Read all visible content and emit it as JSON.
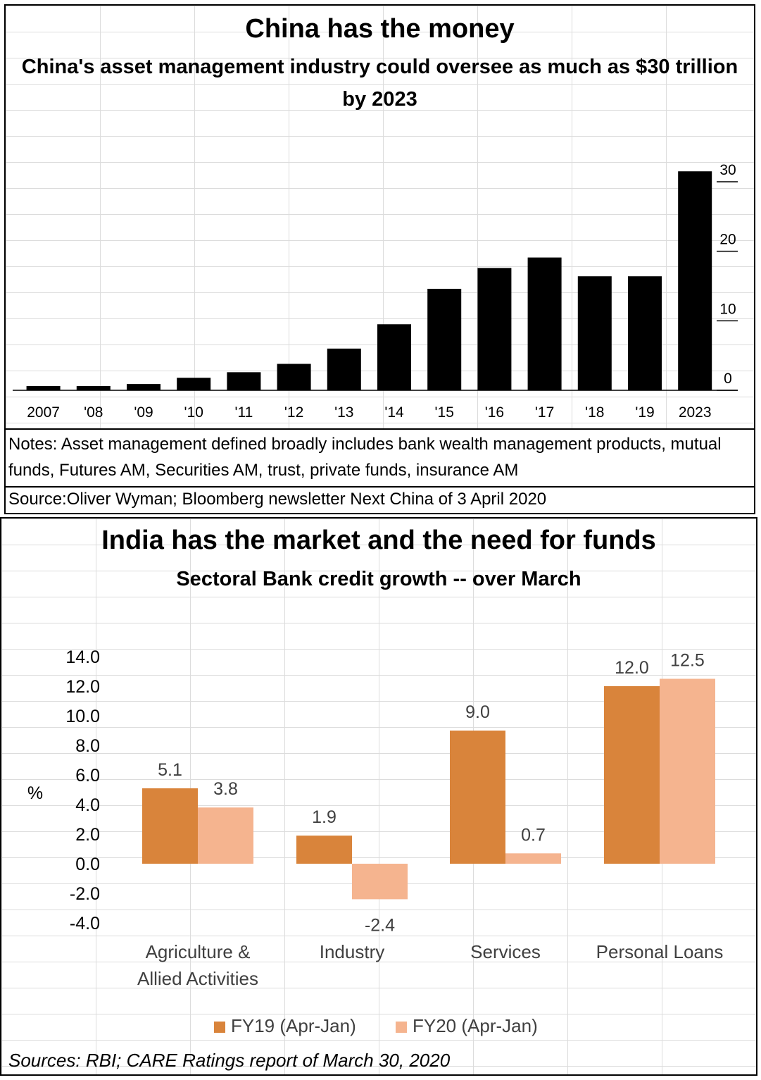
{
  "china": {
    "title": "China has the money",
    "subtitle": "China's asset management industry could oversee as much as $30 trillion by 2023",
    "notes": "Notes: Asset management defined broadly includes bank wealth management products, mutual funds, Futures AM, Securities AM, trust, private funds, insurance AM",
    "source": "Source:Oliver Wyman;  Bloomberg newsletter Next China of 3 April 2020"
  },
  "india": {
    "title": "India has the market and the need for funds",
    "subtitle": "Sectoral Bank credit growth  -- over March",
    "y_unit": "%",
    "sources": "Sources: RBI; CARE Ratings report of March 30, 2020"
  },
  "chart_data": [
    {
      "type": "bar",
      "title": "China has the money",
      "subtitle": "China's asset management industry could oversee as much as $30 trillion by 2023",
      "categories": [
        "2007",
        "'08",
        "'09",
        "'10",
        "'11",
        "'12",
        "'13",
        "'14",
        "'15",
        "'16",
        "'17",
        "'18",
        "'19",
        "2023"
      ],
      "values": [
        0.5,
        0.5,
        0.9,
        1.8,
        2.6,
        3.8,
        6.0,
        9.5,
        14.6,
        17.6,
        19.1,
        16.4,
        16.4,
        31.5
      ],
      "ylim": [
        0,
        34
      ],
      "yticks": [
        0,
        10,
        20,
        30
      ],
      "color": "#000000",
      "xlabel": "",
      "ylabel": ""
    },
    {
      "type": "bar",
      "title": "India has the market and the need for funds",
      "subtitle": "Sectoral Bank credit growth  -- over March",
      "categories": [
        "Agriculture & Allied Activities",
        "Industry",
        "Services",
        "Personal Loans"
      ],
      "series": [
        {
          "name": "FY19 (Apr-Jan)",
          "values": [
            5.1,
            1.9,
            9.0,
            12.0
          ],
          "labels": [
            "5.1",
            "1.9",
            "9.0",
            "12.0"
          ],
          "color": "#d9843b"
        },
        {
          "name": "FY20 (Apr-Jan)",
          "values": [
            3.8,
            -2.4,
            0.7,
            12.5
          ],
          "labels": [
            "3.8",
            "-2.4",
            "0.7",
            "12.5"
          ],
          "color": "#f5b48f"
        }
      ],
      "ylim": [
        -4.0,
        14.0
      ],
      "yticks": [
        "14.0",
        "12.0",
        "10.0",
        "8.0",
        "6.0",
        "4.0",
        "2.0",
        "0.0",
        "-2.0",
        "-4.0"
      ],
      "ylabel": "%",
      "xlabel": "",
      "legend": "bottom"
    }
  ]
}
